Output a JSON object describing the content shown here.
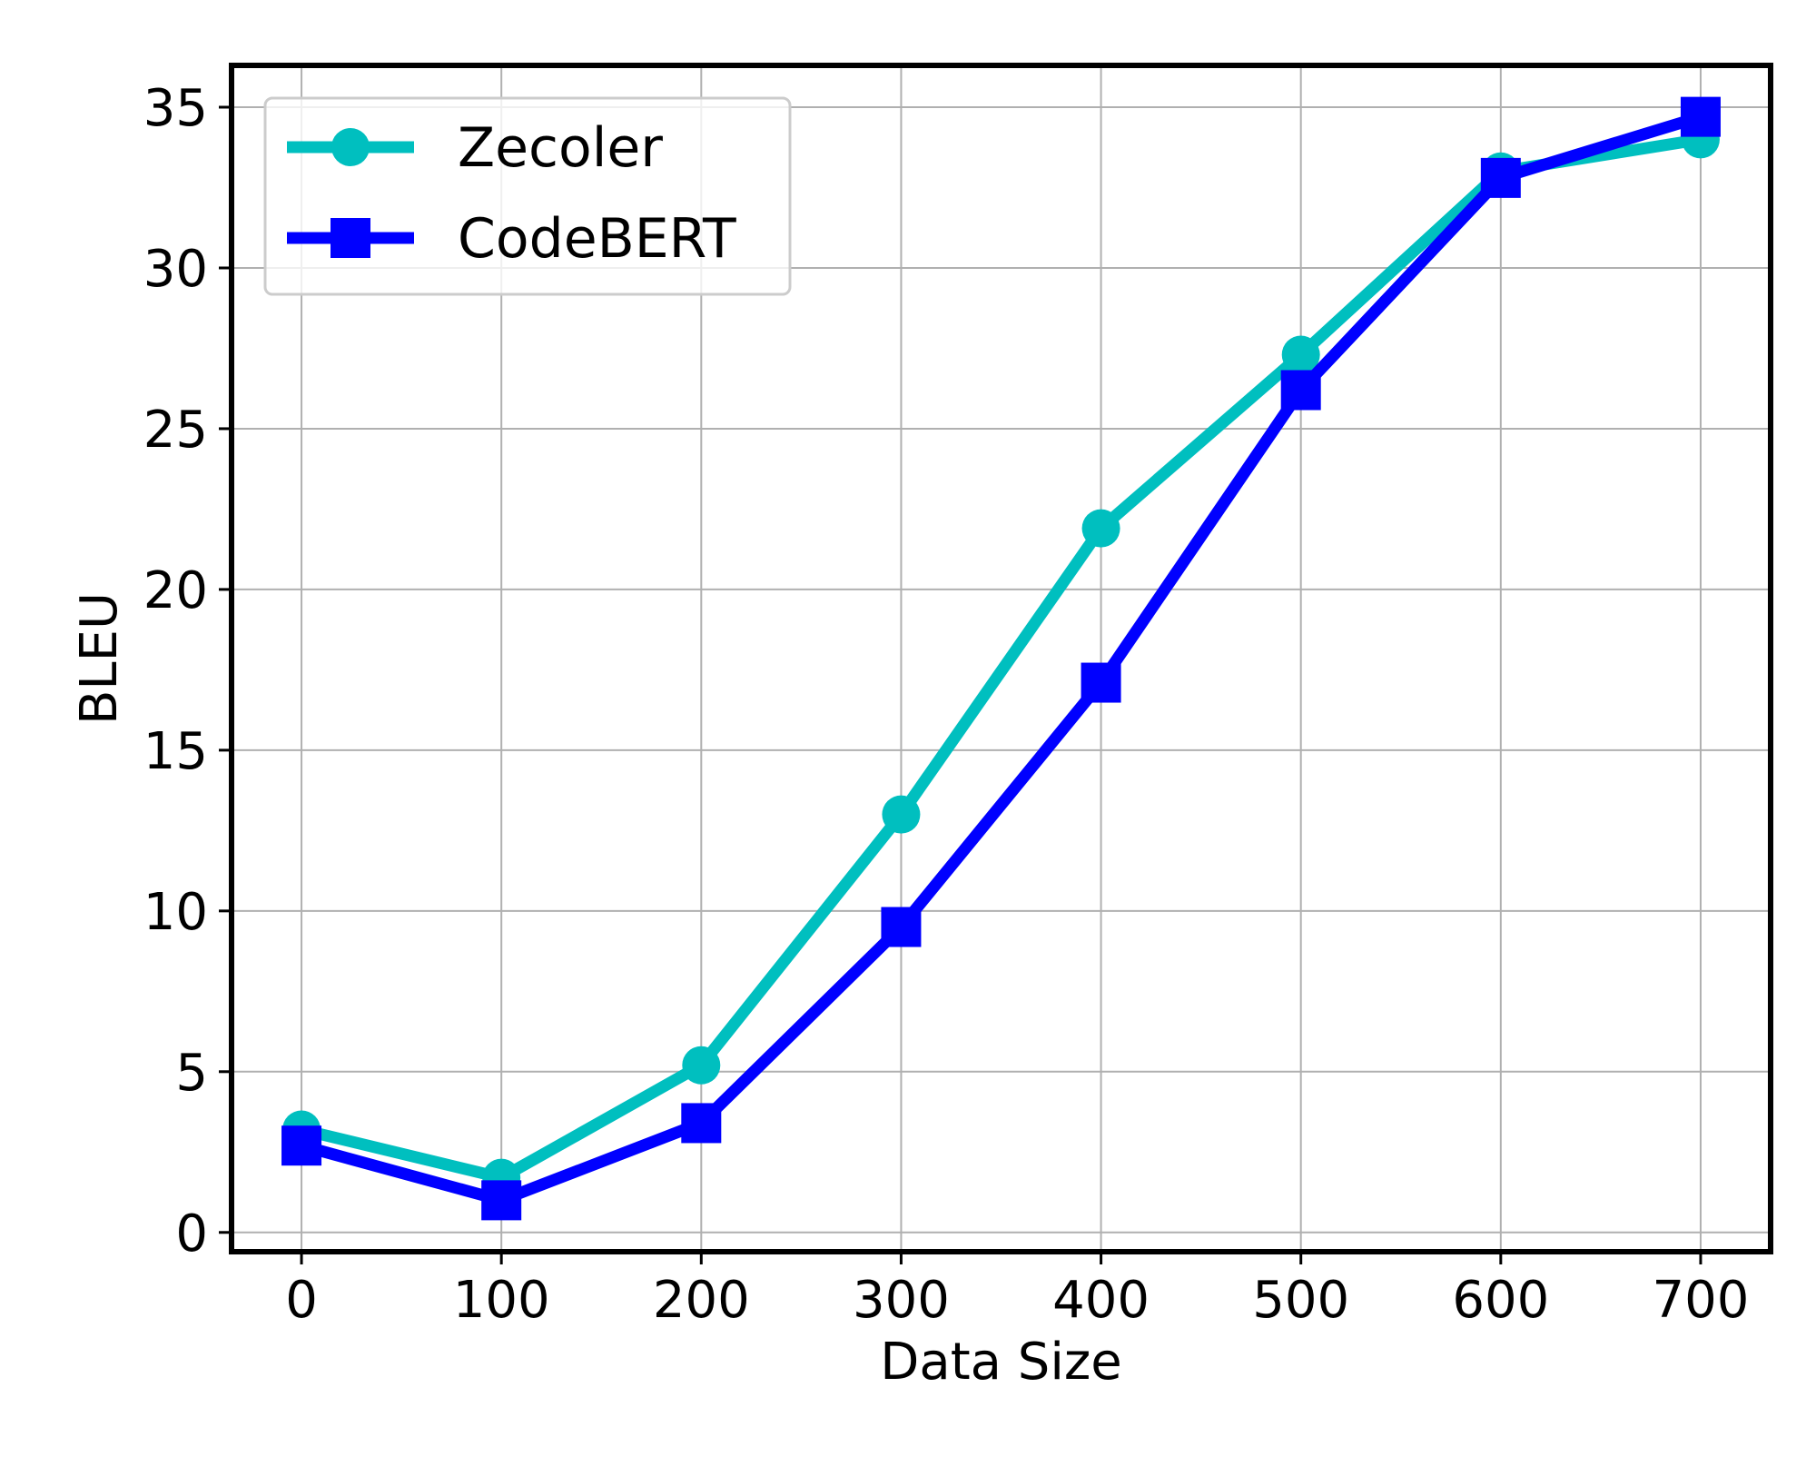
{
  "chart_data": {
    "type": "line",
    "xlabel": "Data Size",
    "ylabel": "BLEU",
    "x": [
      0,
      100,
      200,
      300,
      400,
      500,
      600,
      700
    ],
    "xlim": [
      -35,
      735
    ],
    "ylim": [
      -0.6,
      36.3
    ],
    "xticks": [
      0,
      100,
      200,
      300,
      400,
      500,
      600,
      700
    ],
    "yticks": [
      0,
      5,
      10,
      15,
      20,
      25,
      30,
      35
    ],
    "grid": true,
    "legend_position": "top-left",
    "series": [
      {
        "name": "Zecoler",
        "color": "#00bfbf",
        "marker": "circle",
        "values": [
          3.2,
          1.7,
          5.2,
          13.0,
          21.9,
          27.3,
          33.0,
          34.0
        ]
      },
      {
        "name": "CodeBERT",
        "color": "#0000ff",
        "marker": "square",
        "values": [
          2.7,
          1.0,
          3.4,
          9.5,
          17.1,
          26.2,
          32.8,
          34.7
        ]
      }
    ]
  }
}
